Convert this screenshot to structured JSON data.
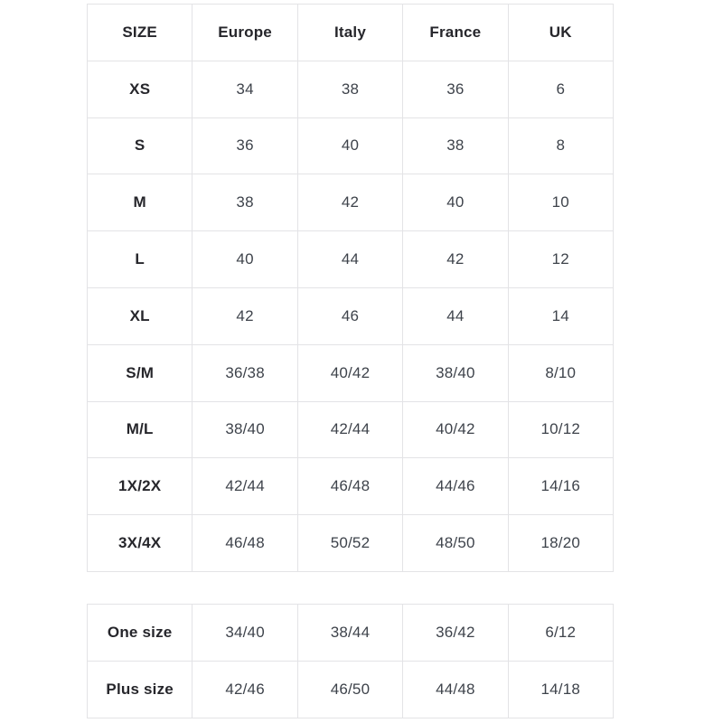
{
  "colors": {
    "background": "#ffffff",
    "border": "#e3e3e6",
    "header_text": "#26262b",
    "value_text": "#3e434b"
  },
  "size_table": {
    "headers": [
      "SIZE",
      "Europe",
      "Italy",
      "France",
      "UK"
    ],
    "rows": [
      {
        "label": "XS",
        "values": [
          "34",
          "38",
          "36",
          "6"
        ]
      },
      {
        "label": "S",
        "values": [
          "36",
          "40",
          "38",
          "8"
        ]
      },
      {
        "label": "M",
        "values": [
          "38",
          "42",
          "40",
          "10"
        ]
      },
      {
        "label": "L",
        "values": [
          "40",
          "44",
          "42",
          "12"
        ]
      },
      {
        "label": "XL",
        "values": [
          "42",
          "46",
          "44",
          "14"
        ]
      },
      {
        "label": "S/M",
        "values": [
          "36/38",
          "40/42",
          "38/40",
          "8/10"
        ]
      },
      {
        "label": "M/L",
        "values": [
          "38/40",
          "42/44",
          "40/42",
          "10/12"
        ]
      },
      {
        "label": "1X/2X",
        "values": [
          "42/44",
          "46/48",
          "44/46",
          "14/16"
        ]
      },
      {
        "label": "3X/4X",
        "values": [
          "46/48",
          "50/52",
          "48/50",
          "18/20"
        ]
      }
    ]
  },
  "special_table": {
    "rows": [
      {
        "label": "One size",
        "values": [
          "34/40",
          "38/44",
          "36/42",
          "6/12"
        ]
      },
      {
        "label": "Plus size",
        "values": [
          "42/46",
          "46/50",
          "44/48",
          "14/18"
        ]
      }
    ]
  }
}
